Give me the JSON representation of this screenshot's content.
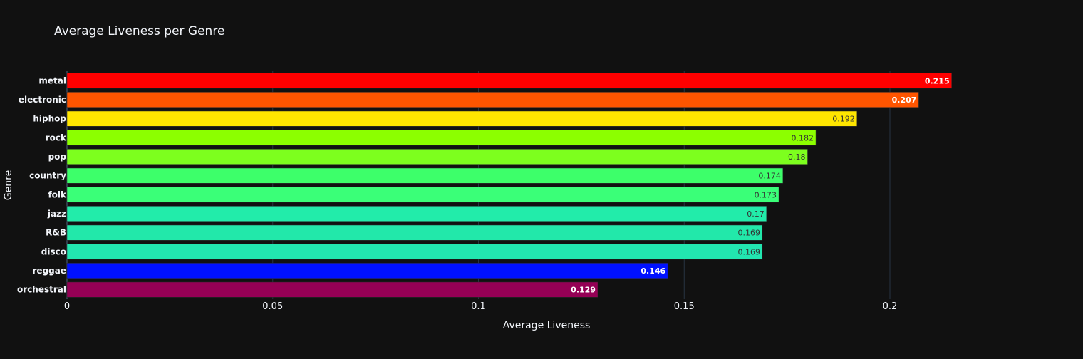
{
  "chart_data": {
    "type": "bar",
    "orientation": "horizontal",
    "title": "Average Liveness per Genre",
    "xlabel": "Average Liveness",
    "ylabel": "Genre",
    "xlim": [
      0,
      0.24
    ],
    "xticks": [
      0,
      0.05,
      0.1,
      0.15,
      0.2
    ],
    "xtick_labels": [
      "0",
      "0.05",
      "0.1",
      "0.15",
      "0.2"
    ],
    "grid": "vertical",
    "categories": [
      "metal",
      "electronic",
      "hiphop",
      "rock",
      "pop",
      "country",
      "folk",
      "jazz",
      "R&B",
      "disco",
      "reggae",
      "orchestral"
    ],
    "values": [
      0.215,
      0.207,
      0.192,
      0.182,
      0.18,
      0.174,
      0.173,
      0.17,
      0.169,
      0.169,
      0.146,
      0.129
    ],
    "value_labels": [
      "0.215",
      "0.207",
      "0.192",
      "0.182",
      "0.18",
      "0.174",
      "0.173",
      "0.17",
      "0.169",
      "0.169",
      "0.146",
      "0.129"
    ],
    "colors": [
      "#ff0000",
      "#ff5500",
      "#ffe600",
      "#8cff00",
      "#7dff1e",
      "#3dff6a",
      "#3aff78",
      "#22ecaa",
      "#22e8aa",
      "#22e6b0",
      "#0011ff",
      "#950055"
    ],
    "label_colors": [
      "#ffffff",
      "#ffffff",
      "#333333",
      "#333333",
      "#333333",
      "#333333",
      "#333333",
      "#333333",
      "#333333",
      "#333333",
      "#ffffff",
      "#ffffff"
    ],
    "background": "#111111",
    "text_color": "#f2f5fa",
    "grid_color": "#283442"
  }
}
